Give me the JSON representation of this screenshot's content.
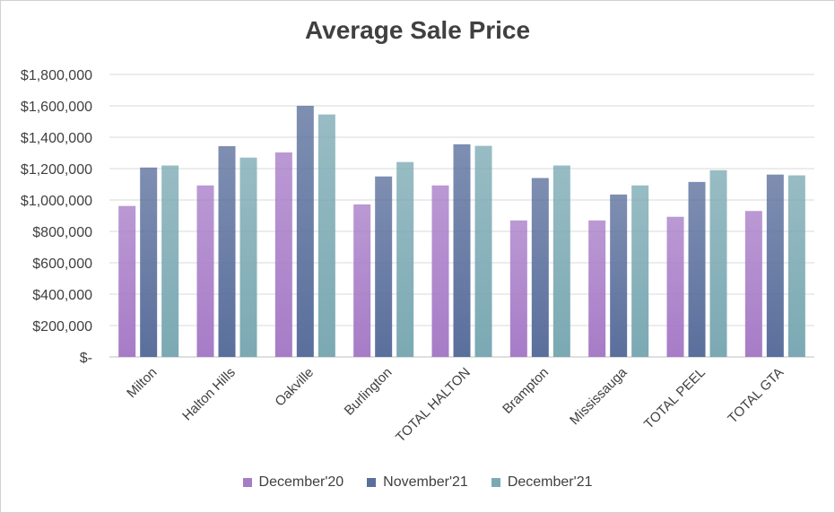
{
  "chart_data": {
    "type": "bar",
    "title": "Average Sale Price",
    "categories": [
      "Milton",
      "Halton Hills",
      "Oakville",
      "Burlington",
      "TOTAL HALTON",
      "Brampton",
      "Mississauga",
      "TOTAL PEEL",
      "TOTAL GTA"
    ],
    "series": [
      {
        "name": "December'20",
        "color": "#a77cc7",
        "values": [
          962000,
          1093000,
          1303000,
          972000,
          1093000,
          870000,
          870000,
          893000,
          930000
        ]
      },
      {
        "name": "November'21",
        "color": "#5a6f9c",
        "values": [
          1207000,
          1343000,
          1600000,
          1150000,
          1355000,
          1140000,
          1035000,
          1115000,
          1162000
        ]
      },
      {
        "name": "December'21",
        "color": "#7ba9b3",
        "values": [
          1220000,
          1270000,
          1545000,
          1242000,
          1345000,
          1220000,
          1093000,
          1190000,
          1157000
        ]
      }
    ],
    "yticks": [
      "$-",
      "$200,000",
      "$400,000",
      "$600,000",
      "$800,000",
      "$1,000,000",
      "$1,200,000",
      "$1,400,000",
      "$1,600,000",
      "$1,800,000"
    ],
    "ylim": [
      0,
      1800000
    ],
    "ytick_step": 200000,
    "grid": true,
    "legend_position": "bottom",
    "xlabel": "",
    "ylabel": ""
  }
}
